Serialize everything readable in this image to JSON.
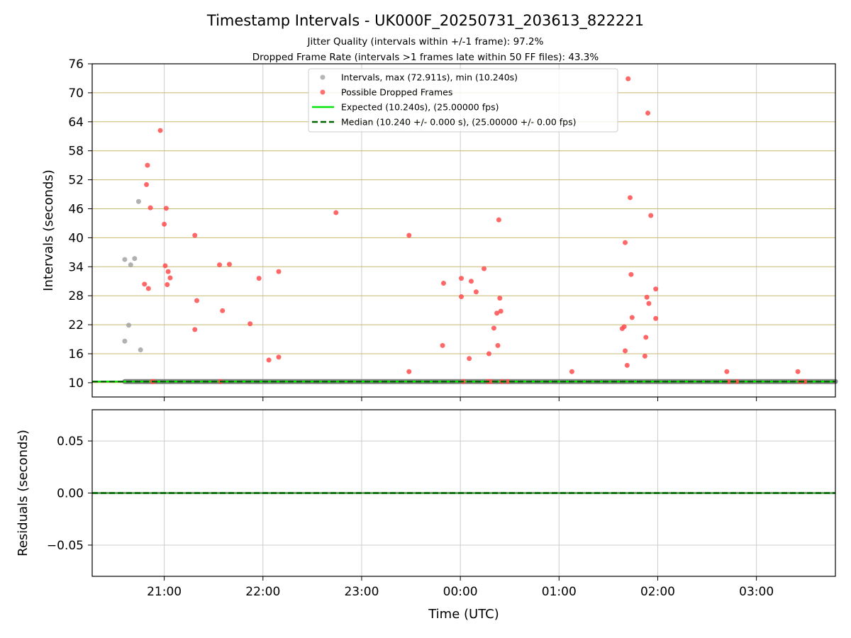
{
  "figure": {
    "title": "Timestamp Intervals - UK000F_20250731_203613_822221",
    "subtitle_1": "Jitter Quality (intervals within +/-1 frame): 97.2%",
    "subtitle_2": "Dropped Frame Rate (intervals >1 frames late within 50 FF files): 43.3%",
    "xlabel": "Time (UTC)"
  },
  "colors": {
    "interval": "#9e9e9e",
    "dropped": "#ff4d4d",
    "expected": "#00e600",
    "median": "#006400",
    "hgrid": "#c8b870",
    "vgrid": "#cccccc"
  },
  "chart_data": [
    {
      "type": "scatter",
      "ylabel": "Intervals (seconds)",
      "x_ticks": [
        {
          "hours": 21,
          "label": "21:00"
        },
        {
          "hours": 22,
          "label": "22:00"
        },
        {
          "hours": 23,
          "label": "23:00"
        },
        {
          "hours": 24,
          "label": "00:00"
        },
        {
          "hours": 25,
          "label": "01:00"
        },
        {
          "hours": 26,
          "label": "02:00"
        },
        {
          "hours": 27,
          "label": "03:00"
        }
      ],
      "y_ticks": [
        {
          "value": 10,
          "label": "10"
        },
        {
          "value": 16,
          "label": "16"
        },
        {
          "value": 22,
          "label": "22"
        },
        {
          "value": 28,
          "label": "28"
        },
        {
          "value": 34,
          "label": "34"
        },
        {
          "value": 40,
          "label": "40"
        },
        {
          "value": 46,
          "label": "46"
        },
        {
          "value": 52,
          "label": "52"
        },
        {
          "value": 58,
          "label": "58"
        },
        {
          "value": 64,
          "label": "64"
        },
        {
          "value": 70,
          "label": "70"
        },
        {
          "value": 76,
          "label": "76"
        }
      ],
      "xlim": [
        20.27,
        27.8
      ],
      "ylim": [
        7.05,
        76
      ],
      "legend": {
        "position": "upper-center",
        "entries": [
          "Intervals, max (72.911s), min (10.240s)",
          "Possible Dropped Frames",
          "Expected (10.240s), (25.00000 fps)",
          "Median (10.240 +/- 0.000 s), (25.00000 +/- 0.00 fps)"
        ]
      },
      "lines": [
        {
          "name": "Expected (10.240s), (25.00000 fps)",
          "y": 10.24,
          "style": "solid"
        },
        {
          "name": "Median (10.240 +/- 0.000 s), (25.00000 +/- 0.00 fps)",
          "y": 10.24,
          "style": "dashed"
        }
      ],
      "series": [
        {
          "name": "Intervals, max (72.911s), min (10.240s)",
          "points": [
            [
              20.6,
              35.5
            ],
            [
              20.64,
              21.9
            ],
            [
              20.66,
              34.4
            ],
            [
              20.7,
              35.7
            ],
            [
              20.74,
              47.5
            ],
            [
              20.76,
              16.8
            ],
            [
              20.6,
              18.6
            ]
          ],
          "baseline": {
            "y": 10.24,
            "x_from": 20.6,
            "x_to": 27.8
          }
        },
        {
          "name": "Possible Dropped Frames",
          "points": [
            [
              20.83,
              55.0
            ],
            [
              20.82,
              51.0
            ],
            [
              20.86,
              46.2
            ],
            [
              20.8,
              30.4
            ],
            [
              20.84,
              29.5
            ],
            [
              20.88,
              10.24
            ],
            [
              20.89,
              10.24
            ],
            [
              20.96,
              62.2
            ],
            [
              21.0,
              42.8
            ],
            [
              21.02,
              46.1
            ],
            [
              21.01,
              34.2
            ],
            [
              21.04,
              33.0
            ],
            [
              21.03,
              30.3
            ],
            [
              21.06,
              31.7
            ],
            [
              21.31,
              40.5
            ],
            [
              21.33,
              27.0
            ],
            [
              21.31,
              21.0
            ],
            [
              21.56,
              34.4
            ],
            [
              21.66,
              34.5
            ],
            [
              21.59,
              24.9
            ],
            [
              21.57,
              10.24
            ],
            [
              21.87,
              22.2
            ],
            [
              21.96,
              31.6
            ],
            [
              22.06,
              14.7
            ],
            [
              22.16,
              33.0
            ],
            [
              22.16,
              15.3
            ],
            [
              22.74,
              45.2
            ],
            [
              23.48,
              40.5
            ],
            [
              23.48,
              12.3
            ],
            [
              23.83,
              30.6
            ],
            [
              23.82,
              17.7
            ],
            [
              24.01,
              31.6
            ],
            [
              24.01,
              27.8
            ],
            [
              24.11,
              31.0
            ],
            [
              24.16,
              28.8
            ],
            [
              24.09,
              15.0
            ],
            [
              24.03,
              10.24
            ],
            [
              24.24,
              33.6
            ],
            [
              24.29,
              16.0
            ],
            [
              24.28,
              10.24
            ],
            [
              24.31,
              10.24
            ],
            [
              24.34,
              21.3
            ],
            [
              24.39,
              43.7
            ],
            [
              24.37,
              24.4
            ],
            [
              24.41,
              24.8
            ],
            [
              24.4,
              27.5
            ],
            [
              24.38,
              17.7
            ],
            [
              24.42,
              10.24
            ],
            [
              24.48,
              10.24
            ],
            [
              25.13,
              12.3
            ],
            [
              25.7,
              72.9
            ],
            [
              25.72,
              48.3
            ],
            [
              25.67,
              39.0
            ],
            [
              25.73,
              32.4
            ],
            [
              25.74,
              23.5
            ],
            [
              25.64,
              21.2
            ],
            [
              25.66,
              21.6
            ],
            [
              25.67,
              16.6
            ],
            [
              25.69,
              13.6
            ],
            [
              25.9,
              65.8
            ],
            [
              25.93,
              44.6
            ],
            [
              25.98,
              29.4
            ],
            [
              25.89,
              27.7
            ],
            [
              25.91,
              26.4
            ],
            [
              25.98,
              23.3
            ],
            [
              25.88,
              19.4
            ],
            [
              25.87,
              15.5
            ],
            [
              26.7,
              12.3
            ],
            [
              26.72,
              10.24
            ],
            [
              26.8,
              10.24
            ],
            [
              27.42,
              12.3
            ],
            [
              27.44,
              10.24
            ],
            [
              27.49,
              10.24
            ]
          ]
        }
      ]
    },
    {
      "type": "scatter",
      "ylabel": "Residuals (seconds)",
      "x_ticks": [
        {
          "hours": 21,
          "label": "21:00"
        },
        {
          "hours": 22,
          "label": "22:00"
        },
        {
          "hours": 23,
          "label": "23:00"
        },
        {
          "hours": 24,
          "label": "00:00"
        },
        {
          "hours": 25,
          "label": "01:00"
        },
        {
          "hours": 26,
          "label": "02:00"
        },
        {
          "hours": 27,
          "label": "03:00"
        }
      ],
      "y_ticks": [
        {
          "value": 0.05,
          "label": "0.05"
        },
        {
          "value": 0.0,
          "label": "0.00"
        },
        {
          "value": -0.05,
          "label": "−0.05"
        }
      ],
      "xlim": [
        20.27,
        27.8
      ],
      "ylim": [
        -0.08,
        0.08
      ],
      "lines": [
        {
          "name": "Expected",
          "y": 0.0,
          "style": "solid"
        },
        {
          "name": "Median",
          "y": 0.0,
          "style": "dashed"
        }
      ],
      "residuals": {
        "y": 0.0,
        "x_from": 20.27,
        "x_to": 27.8
      }
    }
  ]
}
